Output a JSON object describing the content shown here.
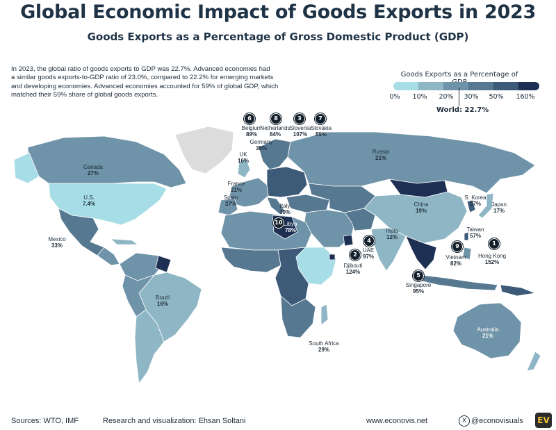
{
  "title": "Global Economic Impact of Goods Exports in 2023",
  "subtitle": "Goods Exports as a Percentage of Gross Domestic Product (GDP)",
  "intro_lines": [
    "In 2023, the global ratio of goods exports to GDP was 22.7%. Advanced economies had",
    "a similar goods exports-to-GDP ratio of 23.0%, compared to 22.2% for emerging markets",
    "and developing economies. Advanced economies accounted for 59% of global GDP, which",
    "matched their 59% share of global goods exports."
  ],
  "legend": {
    "title": "Goods Exports as a Percentage of GDP",
    "ticks": [
      "0%",
      "10%",
      "20%",
      "30%",
      "50%",
      "160%"
    ],
    "colors": [
      "#a7dde6",
      "#8fb6c5",
      "#6f93a8",
      "#567891",
      "#3d5a78",
      "#1d2f52"
    ],
    "world_label": "World: 22.7%"
  },
  "countries": [
    {
      "id": "canada",
      "name": "Canada",
      "value": "27%"
    },
    {
      "id": "us",
      "name": "U.S.",
      "value": "7.4%"
    },
    {
      "id": "mexico",
      "name": "Mexico",
      "value": "33%"
    },
    {
      "id": "brazil",
      "name": "Brazil",
      "value": "16%"
    },
    {
      "id": "uk",
      "name": "UK",
      "value": "16%"
    },
    {
      "id": "france",
      "name": "France",
      "value": "21%"
    },
    {
      "id": "spain",
      "name": "Spain",
      "value": "27%"
    },
    {
      "id": "germany",
      "name": "Germany",
      "value": "38%"
    },
    {
      "id": "italy",
      "name": "Italy",
      "value": "30%"
    },
    {
      "id": "belgium",
      "name": "Belgium",
      "value": "89%"
    },
    {
      "id": "netherlands",
      "name": "Netherlands",
      "value": "84%"
    },
    {
      "id": "slovenia",
      "name": "Slovenia",
      "value": "107%"
    },
    {
      "id": "slovakia",
      "name": "Slovakia",
      "value": "89%"
    },
    {
      "id": "russia",
      "name": "Russia",
      "value": "21%"
    },
    {
      "id": "libya",
      "name": "Libya",
      "value": "78%"
    },
    {
      "id": "uae",
      "name": "UAE",
      "value": "97%"
    },
    {
      "id": "djibouti",
      "name": "Djibouti",
      "value": "124%"
    },
    {
      "id": "india",
      "name": "India",
      "value": "12%"
    },
    {
      "id": "china",
      "name": "China",
      "value": "19%"
    },
    {
      "id": "skorea",
      "name": "S. Korea",
      "value": "37%"
    },
    {
      "id": "japan",
      "name": "Japan",
      "value": "17%"
    },
    {
      "id": "taiwan",
      "name": "Taiwan",
      "value": "57%"
    },
    {
      "id": "hongkong",
      "name": "Hong Kong",
      "value": "152%"
    },
    {
      "id": "vietnam",
      "name": "Vietnam",
      "value": "82%"
    },
    {
      "id": "singapore",
      "name": "Singapore",
      "value": "95%"
    },
    {
      "id": "southafrica",
      "name": "South Africa",
      "value": "29%"
    },
    {
      "id": "australia",
      "name": "Australia",
      "value": "21%"
    }
  ],
  "ranks": [
    "1",
    "2",
    "3",
    "4",
    "5",
    "6",
    "7",
    "8",
    "9",
    "10"
  ],
  "footer": {
    "sources": "Sources: WTO, IMF",
    "credit": "Research and visualization: Ehsan Soltani",
    "website": "www.econovis.net",
    "x_glyph": "X",
    "handle": "@econovisuals",
    "logo": "EV"
  }
}
